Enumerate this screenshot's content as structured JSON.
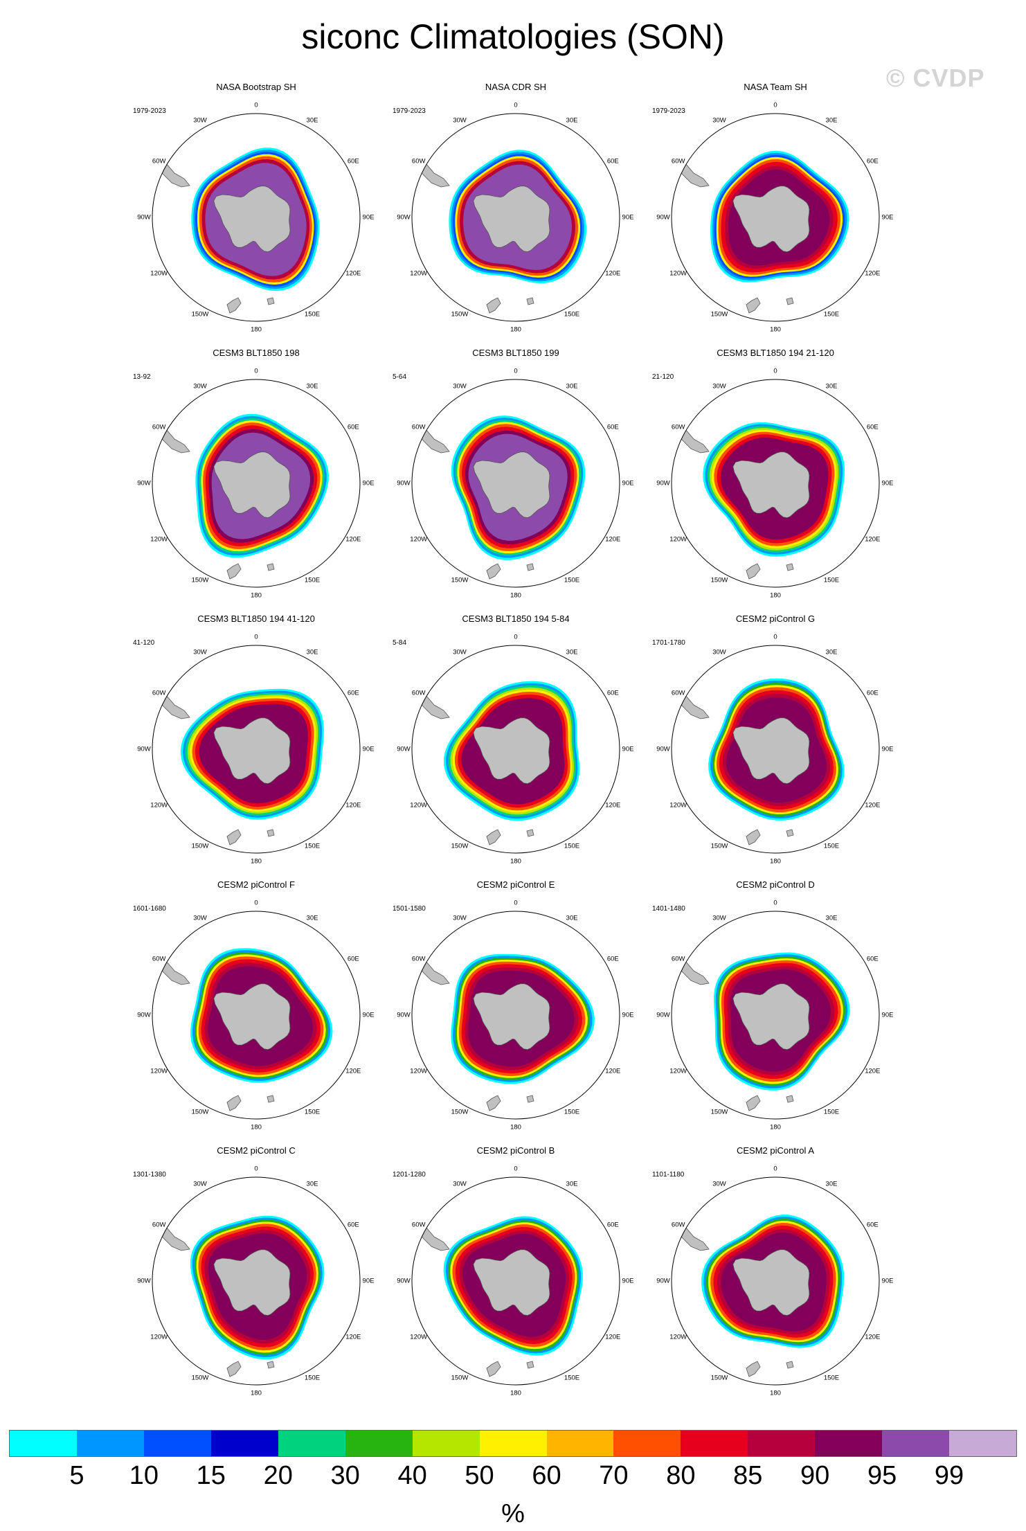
{
  "title": "siconc Climatologies (SON)",
  "watermark": "© CVDP",
  "panels": [
    {
      "title": "NASA Bootstrap SH",
      "period": "1979-2023",
      "style": "obs_bootstrap"
    },
    {
      "title": "NASA CDR SH",
      "period": "1979-2023",
      "style": "obs_cdr"
    },
    {
      "title": "NASA Team SH",
      "period": "1979-2023",
      "style": "obs_team"
    },
    {
      "title": "CESM3 BLT1850 198",
      "period": "13-92",
      "style": "cesm3_a"
    },
    {
      "title": "CESM3 BLT1850 199",
      "period": "5-64",
      "style": "cesm3_b"
    },
    {
      "title": "CESM3 BLT1850 194 21-120",
      "period": "21-120",
      "style": "cesm3_c"
    },
    {
      "title": "CESM3 BLT1850 194 41-120",
      "period": "41-120",
      "style": "cesm3_c"
    },
    {
      "title": "CESM3 BLT1850 194 5-84",
      "period": "5-84",
      "style": "cesm3_c"
    },
    {
      "title": "CESM2 piControl G",
      "period": "1701-1780",
      "style": "cesm2"
    },
    {
      "title": "CESM2 piControl F",
      "period": "1601-1680",
      "style": "cesm2"
    },
    {
      "title": "CESM2 piControl E",
      "period": "1501-1580",
      "style": "cesm2"
    },
    {
      "title": "CESM2 piControl D",
      "period": "1401-1480",
      "style": "cesm2"
    },
    {
      "title": "CESM2 piControl C",
      "period": "1301-1380",
      "style": "cesm2"
    },
    {
      "title": "CESM2 piControl B",
      "period": "1201-1280",
      "style": "cesm2"
    },
    {
      "title": "CESM2 piControl A",
      "period": "1101-1180",
      "style": "cesm2"
    }
  ],
  "map_labels": [
    "0",
    "30E",
    "60E",
    "90E",
    "120E",
    "150E",
    "180",
    "150W",
    "120W",
    "90W",
    "60W",
    "30W"
  ],
  "colorbar": {
    "colors": [
      "#00ffff",
      "#0096ff",
      "#0050ff",
      "#0000cd",
      "#00d27d",
      "#28b40f",
      "#b4e600",
      "#fff000",
      "#ffb400",
      "#ff5000",
      "#e6001e",
      "#b4003c",
      "#82005a",
      "#8c4baa",
      "#c8aad7"
    ],
    "labels": [
      "5",
      "10",
      "15",
      "20",
      "30",
      "40",
      "50",
      "60",
      "70",
      "80",
      "85",
      "90",
      "95",
      "99"
    ]
  },
  "units": "%",
  "colors": {
    "land": "#c0c0c0",
    "coast": "#555555"
  }
}
